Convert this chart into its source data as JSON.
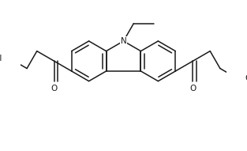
{
  "bg_color": "#ffffff",
  "line_color": "#1a1a1a",
  "line_width": 1.1,
  "font_size": 7.5,
  "figsize": [
    3.13,
    1.91
  ],
  "dpi": 100,
  "xlim": [
    -1.65,
    1.65
  ],
  "ylim": [
    -1.05,
    1.05
  ]
}
